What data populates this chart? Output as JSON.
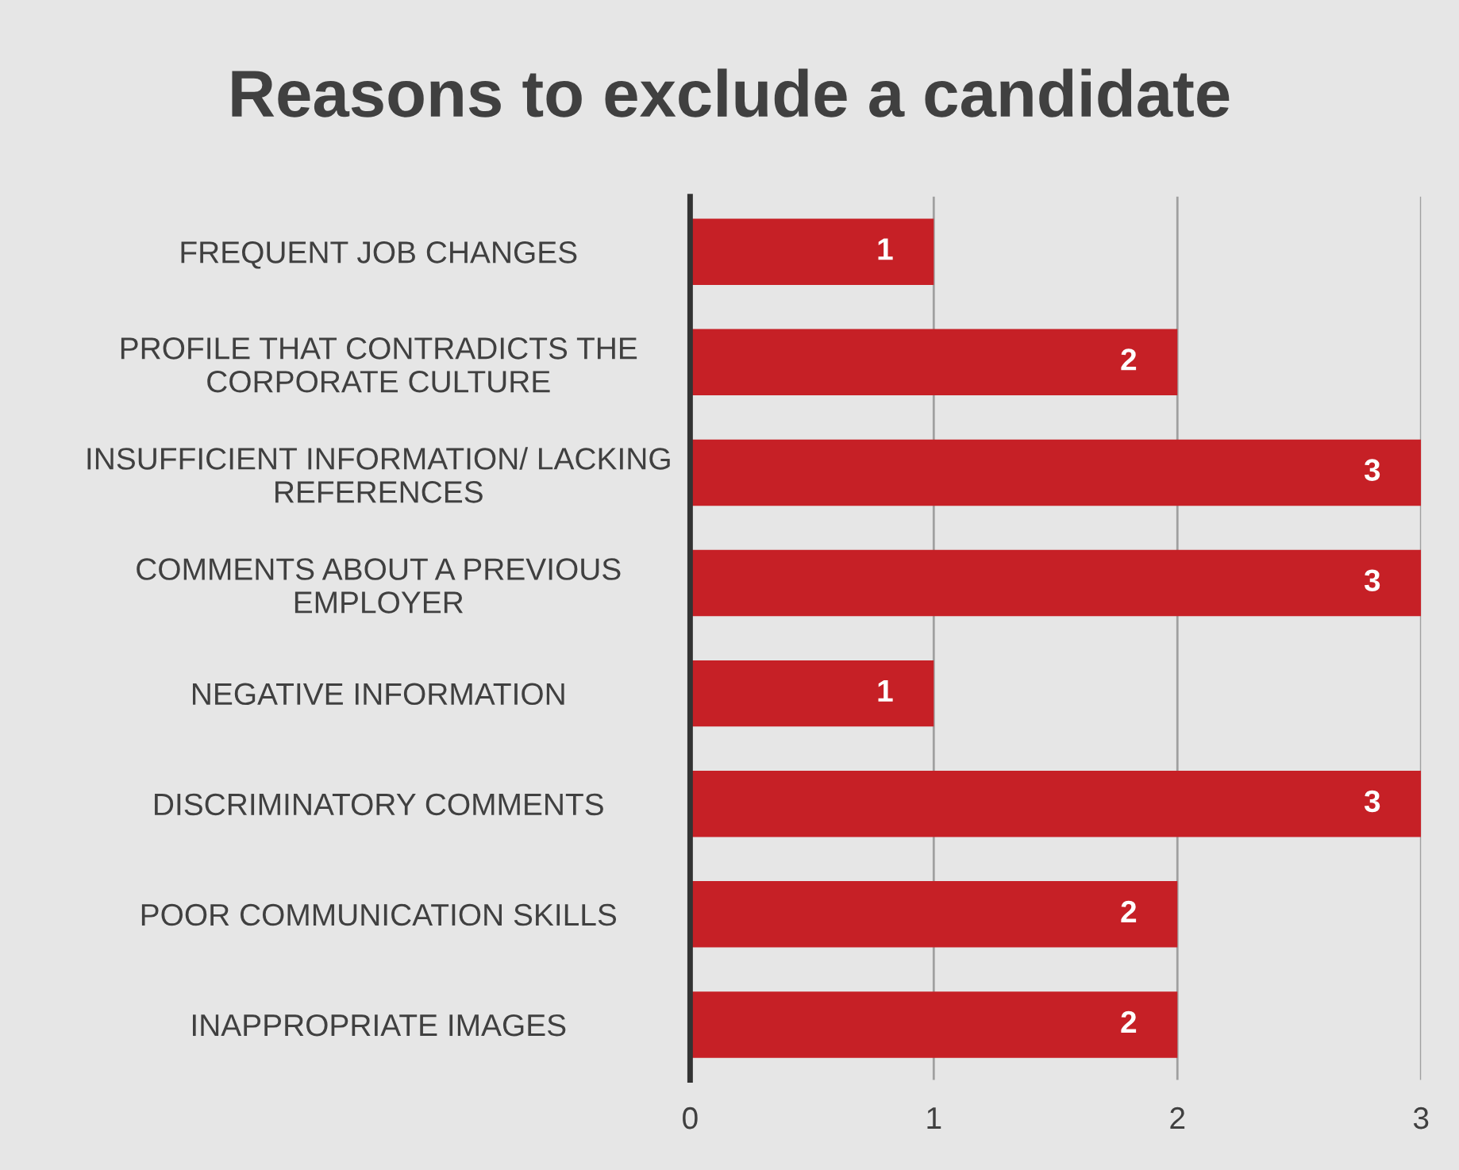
{
  "chart_data": {
    "type": "bar",
    "orientation": "horizontal",
    "title": "Reasons to exclude a candidate",
    "categories": [
      "FREQUENT JOB CHANGES",
      "PROFILE THAT CONTRADICTS THE\nCORPORATE CULTURE",
      "INSUFFICIENT INFORMATION/ LACKING\nREFERENCES",
      "COMMENTS ABOUT A PREVIOUS\nEMPLOYER",
      "NEGATIVE INFORMATION",
      "DISCRIMINATORY COMMENTS",
      "POOR COMMUNICATION SKILLS",
      "INAPPROPRIATE IMAGES"
    ],
    "values": [
      1,
      2,
      3,
      3,
      1,
      3,
      2,
      2
    ],
    "color": "#c62026",
    "xlim": [
      0,
      3
    ],
    "xticks": [
      0,
      1,
      2,
      3
    ],
    "grid": "x",
    "legend": false,
    "data_labels": true
  }
}
